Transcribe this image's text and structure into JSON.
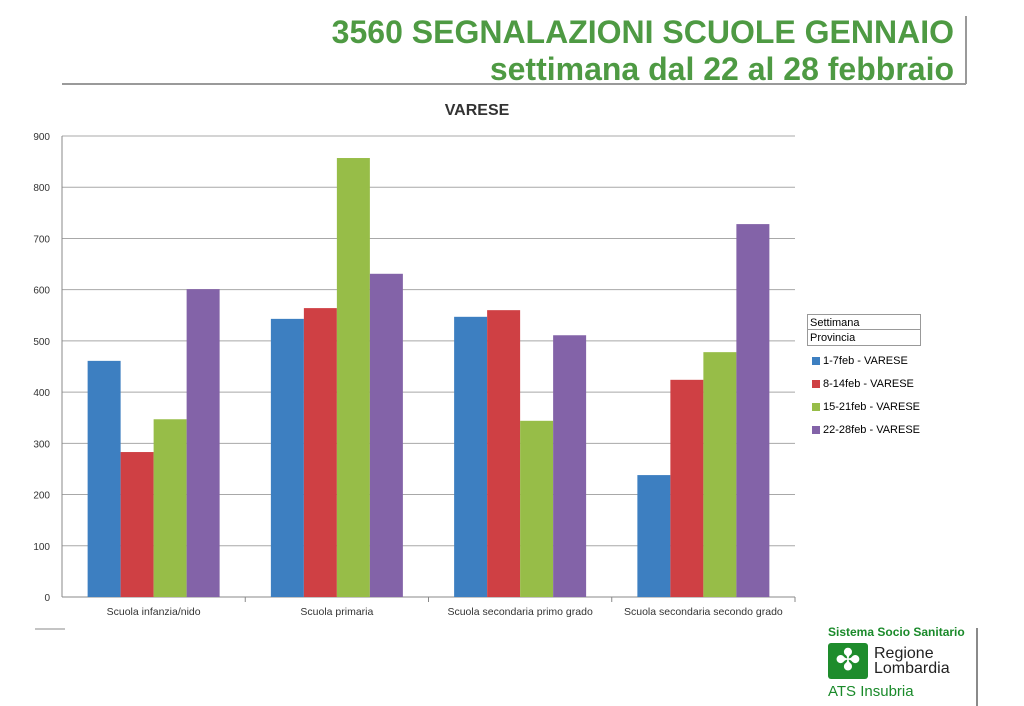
{
  "header": {
    "title": "3560 SEGNALAZIONI SCUOLE GENNAIO",
    "subtitle": "settimana dal 22 al 28 febbraio"
  },
  "chart_data": {
    "type": "bar",
    "title": "VARESE",
    "categories": [
      "Scuola infanzia/nido",
      "Scuola primaria",
      "Scuola secondaria primo grado",
      "Scuola secondaria secondo grado"
    ],
    "series": [
      {
        "name": "1-7feb - VARESE",
        "color": "#3d7fc1",
        "values": [
          461,
          543,
          547,
          238
        ]
      },
      {
        "name": "8-14feb - VARESE",
        "color": "#cf4044",
        "values": [
          283,
          564,
          560,
          424
        ]
      },
      {
        "name": "15-21feb - VARESE",
        "color": "#97bd48",
        "values": [
          347,
          857,
          344,
          478
        ]
      },
      {
        "name": "22-28feb - VARESE",
        "color": "#8363a8",
        "values": [
          601,
          631,
          511,
          728
        ]
      }
    ],
    "ylim": [
      0,
      900
    ],
    "yticks": [
      0,
      100,
      200,
      300,
      400,
      500,
      600,
      700,
      800,
      900
    ],
    "grid": true,
    "legend_position": "right",
    "legend_headers": [
      "Settimana",
      "Provincia"
    ]
  },
  "logo": {
    "top": "Sistema Socio Sanitario",
    "name_line1": "Regione",
    "name_line2": "Lombardia",
    "ats": "ATS Insubria"
  }
}
